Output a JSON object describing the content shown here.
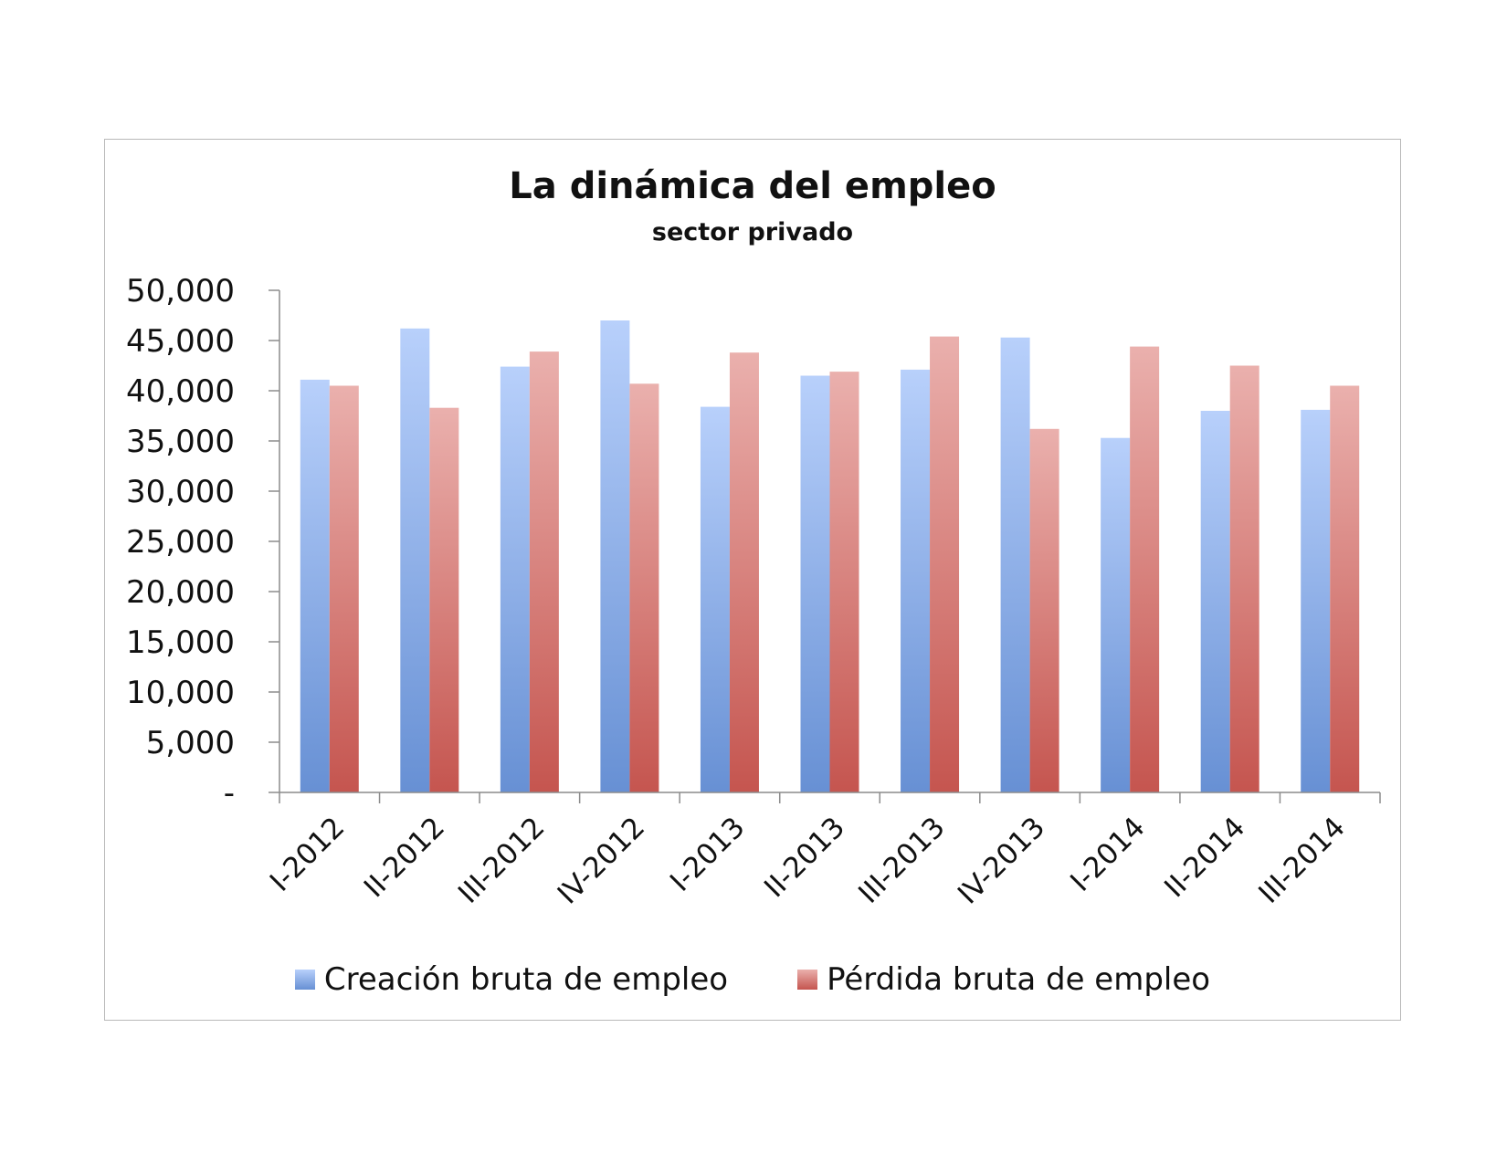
{
  "chart_data": {
    "type": "bar",
    "title": "La dinámica del empleo",
    "subtitle": "sector privado",
    "xlabel": "",
    "ylabel": "",
    "ylim": [
      0,
      50000
    ],
    "y_ticks": [
      0,
      5000,
      10000,
      15000,
      20000,
      25000,
      30000,
      35000,
      40000,
      45000,
      50000
    ],
    "y_tick_labels": [
      "-",
      "5,000",
      "10,000",
      "15,000",
      "20,000",
      "25,000",
      "30,000",
      "35,000",
      "40,000",
      "45,000",
      "50,000"
    ],
    "categories": [
      "I-2012",
      "II-2012",
      "III-2012",
      "IV-2012",
      "I-2013",
      "II-2013",
      "III-2013",
      "IV-2013",
      "I-2014",
      "II-2014",
      "III-2014"
    ],
    "series": [
      {
        "name": "Creación bruta de empleo",
        "color_top": "#b8d0fb",
        "color_bottom": "#6790d4",
        "values": [
          41100,
          46200,
          42400,
          47000,
          38400,
          41500,
          42100,
          45300,
          35300,
          38000,
          38100
        ]
      },
      {
        "name": "Pérdida bruta de empleo",
        "color_top": "#eab0ad",
        "color_bottom": "#c5554f",
        "values": [
          40500,
          38300,
          43900,
          40700,
          43800,
          41900,
          45400,
          36200,
          44400,
          42500,
          40500
        ]
      }
    ],
    "legend_position": "bottom",
    "grid": false
  }
}
